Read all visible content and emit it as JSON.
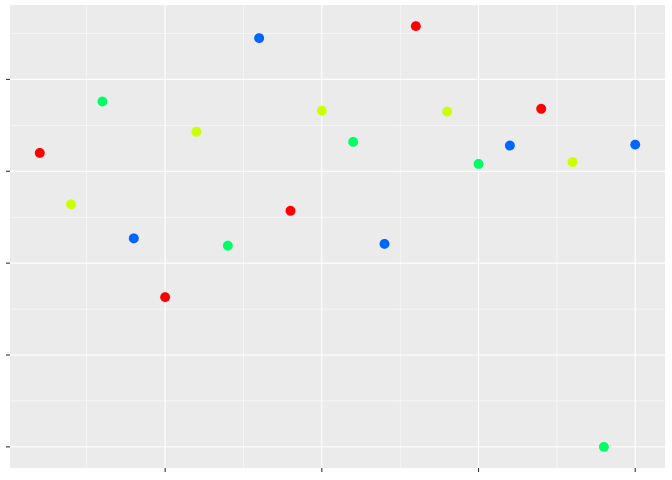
{
  "chart_data": {
    "type": "scatter",
    "series": [
      {
        "color": "#ff0000",
        "x": [
          1,
          5,
          9,
          13,
          17
        ],
        "values": [
          3.2,
          1.63,
          2.57,
          4.58,
          3.68
        ]
      },
      {
        "color": "#ccff00",
        "x": [
          2,
          6,
          10,
          14,
          18
        ],
        "values": [
          2.64,
          3.43,
          3.66,
          3.65,
          3.1
        ]
      },
      {
        "color": "#00ff66",
        "x": [
          3,
          7,
          11,
          15,
          19
        ],
        "values": [
          3.76,
          2.19,
          3.32,
          3.08,
          0
        ]
      },
      {
        "color": "#0066ff",
        "x": [
          4,
          8,
          12,
          16,
          20
        ],
        "values": [
          2.27,
          4.45,
          2.21,
          3.28,
          3.29
        ]
      }
    ],
    "xlim": [
      0.05,
      20.95
    ],
    "xticks": [
      5,
      10,
      15,
      20
    ],
    "ylim": [
      -0.23,
      4.81
    ],
    "yticks": [
      0,
      1,
      2,
      3,
      4
    ],
    "grid": true
  }
}
